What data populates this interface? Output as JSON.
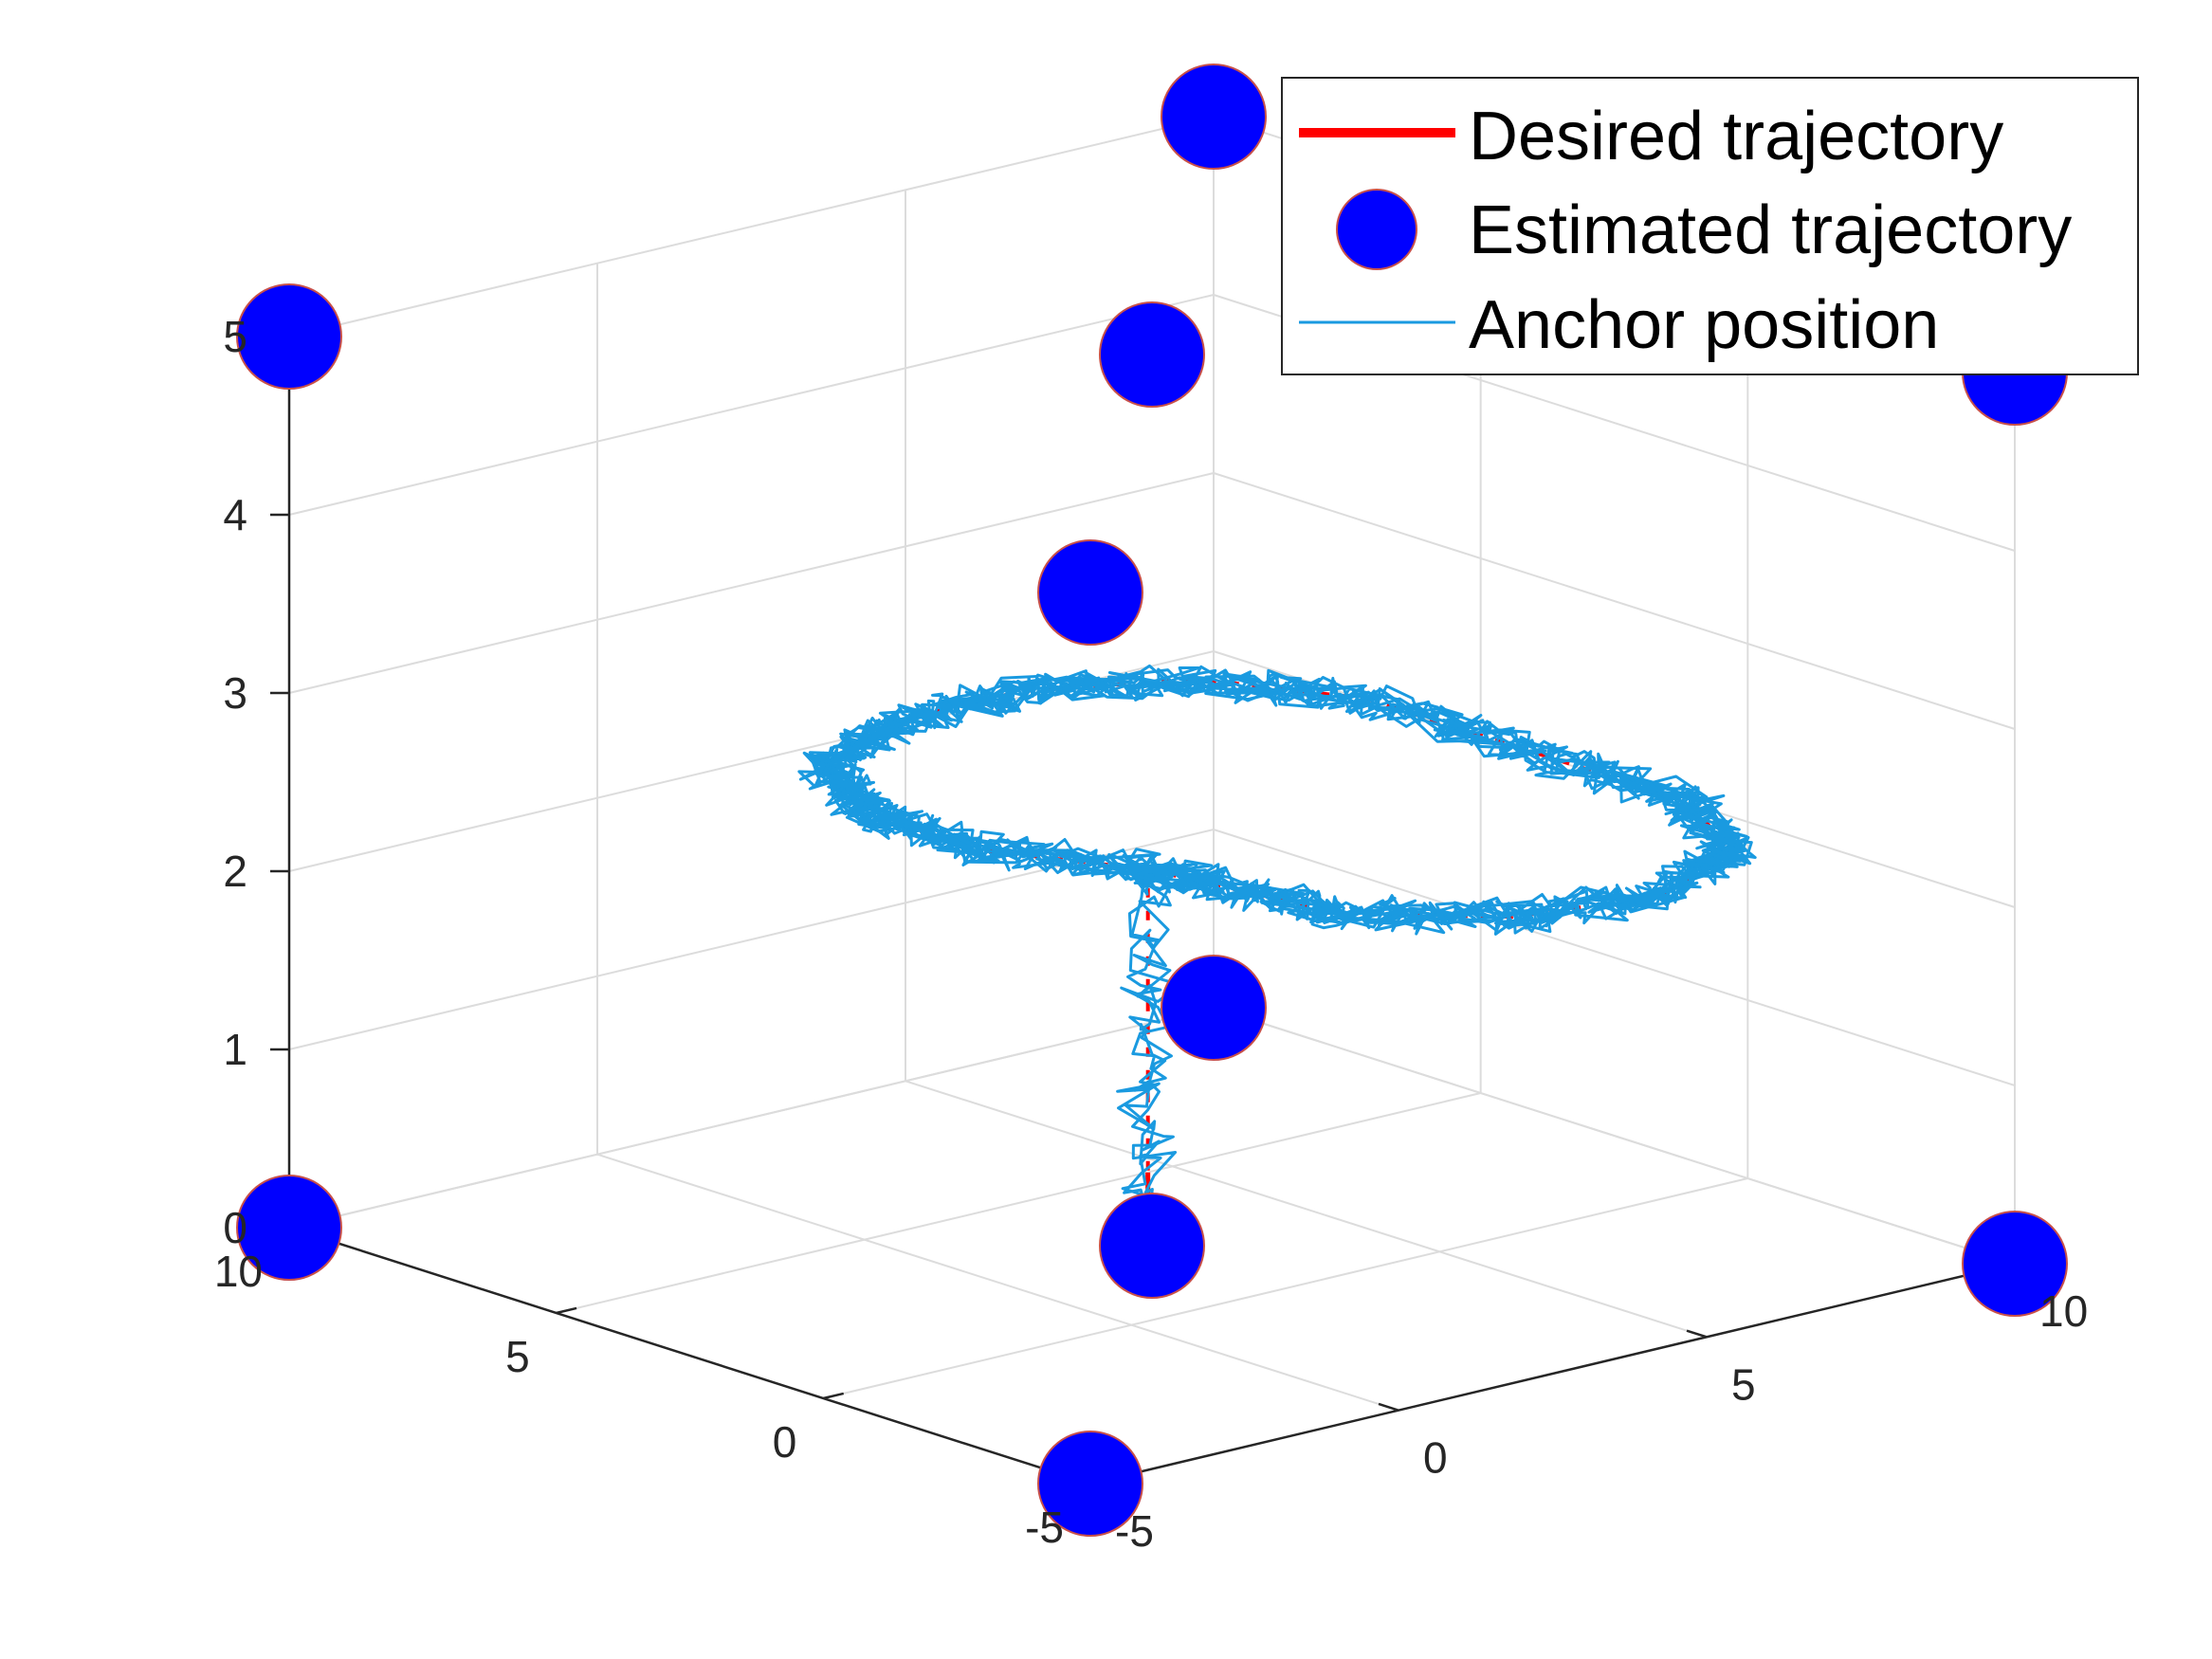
{
  "chart_data": {
    "type": "line",
    "projection": "3d",
    "title": "",
    "xlabel": "",
    "ylabel": "",
    "zlabel": "",
    "xlim": [
      -5,
      10
    ],
    "ylim": [
      -5,
      10
    ],
    "zlim": [
      0,
      5
    ],
    "x_ticks": [
      "-5",
      "0",
      "5",
      "10"
    ],
    "y_ticks": [
      "-5",
      "0",
      "5",
      "10"
    ],
    "z_ticks": [
      "0",
      "1",
      "2",
      "3",
      "4",
      "5"
    ],
    "grid": true,
    "box": false,
    "legend": {
      "location": "top-right",
      "entries": [
        {
          "label": "Desired trajectory",
          "marker": "line",
          "color": "#ff0000"
        },
        {
          "label": "Estimated trajectory",
          "marker": "circle",
          "color": "#0000ff"
        },
        {
          "label": "Anchor position",
          "marker": "line",
          "color": "#1a9ae0"
        }
      ]
    },
    "colors": {
      "desired": "#ff0000",
      "estimated": "#1a9ae0",
      "anchor_fill": "#0000ff",
      "anchor_edge": "#c8504a",
      "axis": "#262626",
      "grid": "#dcdcdc"
    },
    "series": [
      {
        "name": "Desired trajectory",
        "segments": [
          {
            "kind": "vertical",
            "x": 2,
            "y": 2,
            "z": [
              0,
              2.2
            ]
          },
          {
            "kind": "loop",
            "points": [
              [
                2,
                2,
                2.2
              ],
              [
                4,
                1,
                2.2
              ],
              [
                6,
                1,
                2.2
              ],
              [
                8,
                2,
                2.2
              ],
              [
                9,
                4,
                2.2
              ],
              [
                9,
                6,
                2.2
              ],
              [
                8,
                8,
                2.2
              ],
              [
                6,
                9,
                2.2
              ],
              [
                3,
                9,
                2.2
              ],
              [
                0,
                9,
                2.2
              ],
              [
                -2,
                8,
                2.2
              ],
              [
                -3,
                6,
                2.2
              ],
              [
                -2.5,
                4,
                2.2
              ],
              [
                -1,
                2.5,
                2.2
              ],
              [
                0.8,
                2.2,
                2.2
              ],
              [
                2,
                2,
                2.2
              ]
            ]
          }
        ]
      },
      {
        "name": "Estimated trajectory",
        "noise": 0.3,
        "repeats": 10
      },
      {
        "name": "Anchor position",
        "points": [
          [
            -5,
            -5,
            0
          ],
          [
            -5,
            10,
            0
          ],
          [
            10,
            -5,
            0
          ],
          [
            10,
            10,
            0
          ],
          [
            -5,
            -5,
            5
          ],
          [
            -5,
            10,
            5
          ],
          [
            10,
            -5,
            5
          ],
          [
            10,
            10,
            5
          ],
          [
            2.5,
            2.5,
            0
          ],
          [
            2.5,
            2.5,
            5
          ]
        ]
      }
    ]
  }
}
